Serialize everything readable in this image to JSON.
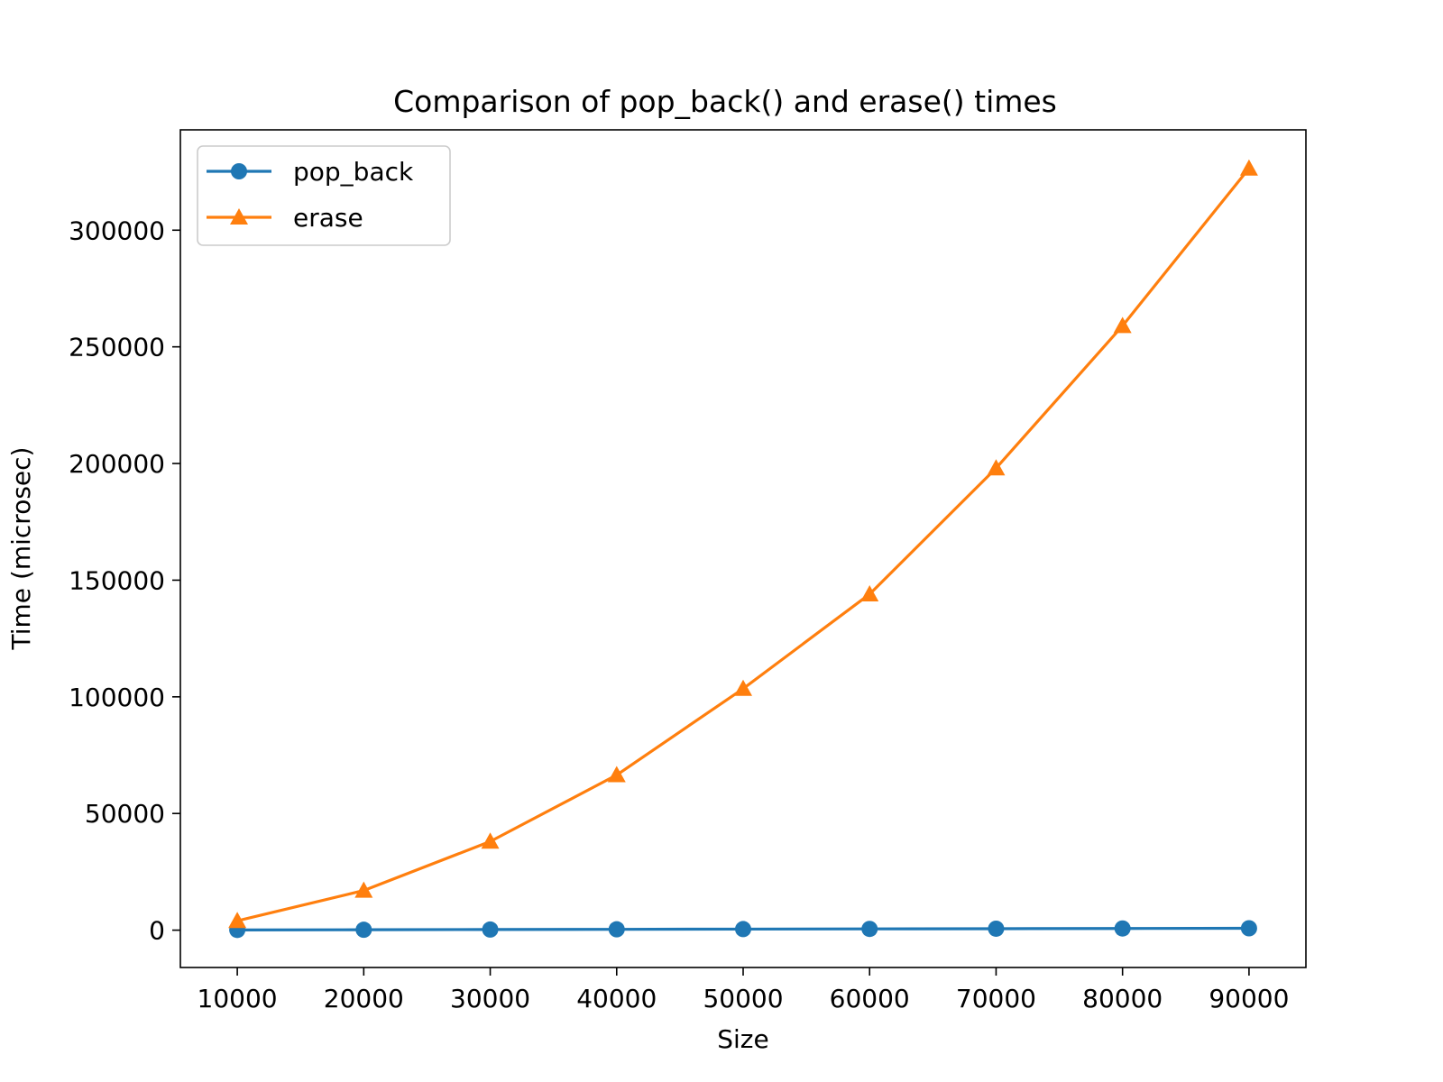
{
  "chart_data": {
    "type": "line",
    "title": "Comparison of pop_back() and erase() times",
    "xlabel": "Size",
    "ylabel": "Time (microsec)",
    "x": [
      10000,
      20000,
      30000,
      40000,
      50000,
      60000,
      70000,
      80000,
      90000
    ],
    "x_ticks": [
      "10000",
      "20000",
      "30000",
      "40000",
      "50000",
      "60000",
      "70000",
      "80000",
      "90000"
    ],
    "y_ticks": [
      "0",
      "50000",
      "100000",
      "150000",
      "200000",
      "250000",
      "300000"
    ],
    "xlim": [
      5500,
      94500
    ],
    "ylim": [
      -16000,
      343000
    ],
    "grid": false,
    "legend_position": "top-left",
    "series": [
      {
        "name": "pop_back",
        "color": "#1f77b4",
        "marker": "circle",
        "values": [
          90,
          180,
          270,
          360,
          450,
          540,
          630,
          720,
          810
        ]
      },
      {
        "name": "erase",
        "color": "#ff7f0e",
        "marker": "triangle",
        "values": [
          4000,
          17000,
          38000,
          66500,
          103500,
          144000,
          198000,
          259000,
          326500
        ]
      }
    ]
  }
}
